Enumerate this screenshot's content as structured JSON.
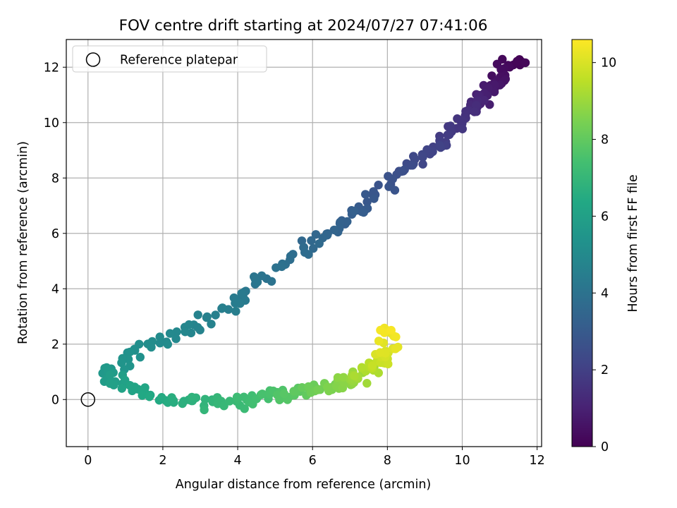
{
  "chart_data": {
    "type": "scatter",
    "title": "FOV centre drift starting at 2024/07/27 07:41:06",
    "xlabel": "Angular distance from reference (arcmin)",
    "ylabel": "Rotation from reference (arcmin)",
    "xlim": [
      -0.58,
      12.12
    ],
    "ylim": [
      -1.7,
      13.0
    ],
    "xticks": [
      0,
      2,
      4,
      6,
      8,
      10,
      12
    ],
    "yticks": [
      0,
      2,
      4,
      6,
      8,
      10,
      12
    ],
    "grid": true,
    "colormap": "viridis",
    "colorbar": {
      "label": "Hours from first FF file",
      "min": 0,
      "max": 10.6,
      "ticks": [
        0,
        2,
        4,
        6,
        8,
        10
      ]
    },
    "legend": {
      "position": "top-left",
      "entries": [
        {
          "label": "Reference platepar",
          "marker": "open-circle"
        }
      ]
    },
    "reference_point": {
      "x": 0,
      "y": 0
    },
    "path_nodes": [
      {
        "t": 0.0,
        "x": 11.5,
        "y": 12.3
      },
      {
        "t": 0.9,
        "x": 10.6,
        "y": 11.0
      },
      {
        "t": 1.5,
        "x": 10.1,
        "y": 10.3
      },
      {
        "t": 2.0,
        "x": 9.4,
        "y": 9.2
      },
      {
        "t": 2.6,
        "x": 8.2,
        "y": 8.0
      },
      {
        "t": 3.2,
        "x": 7.0,
        "y": 6.5
      },
      {
        "t": 3.8,
        "x": 5.5,
        "y": 5.2
      },
      {
        "t": 4.2,
        "x": 4.3,
        "y": 4.0
      },
      {
        "t": 4.6,
        "x": 3.4,
        "y": 3.0
      },
      {
        "t": 4.9,
        "x": 2.4,
        "y": 2.4
      },
      {
        "t": 5.2,
        "x": 1.4,
        "y": 1.8
      },
      {
        "t": 5.6,
        "x": 0.5,
        "y": 1.0
      },
      {
        "t": 6.0,
        "x": 0.8,
        "y": 0.6
      },
      {
        "t": 6.5,
        "x": 2.0,
        "y": 0.0
      },
      {
        "t": 7.0,
        "x": 3.5,
        "y": -0.2
      },
      {
        "t": 7.5,
        "x": 4.8,
        "y": 0.1
      },
      {
        "t": 8.0,
        "x": 5.8,
        "y": 0.3
      },
      {
        "t": 8.6,
        "x": 6.7,
        "y": 0.5
      },
      {
        "t": 9.2,
        "x": 7.4,
        "y": 0.9
      },
      {
        "t": 9.8,
        "x": 7.9,
        "y": 1.5
      },
      {
        "t": 10.5,
        "x": 8.1,
        "y": 2.5
      }
    ],
    "samples_per_hour": 36
  }
}
